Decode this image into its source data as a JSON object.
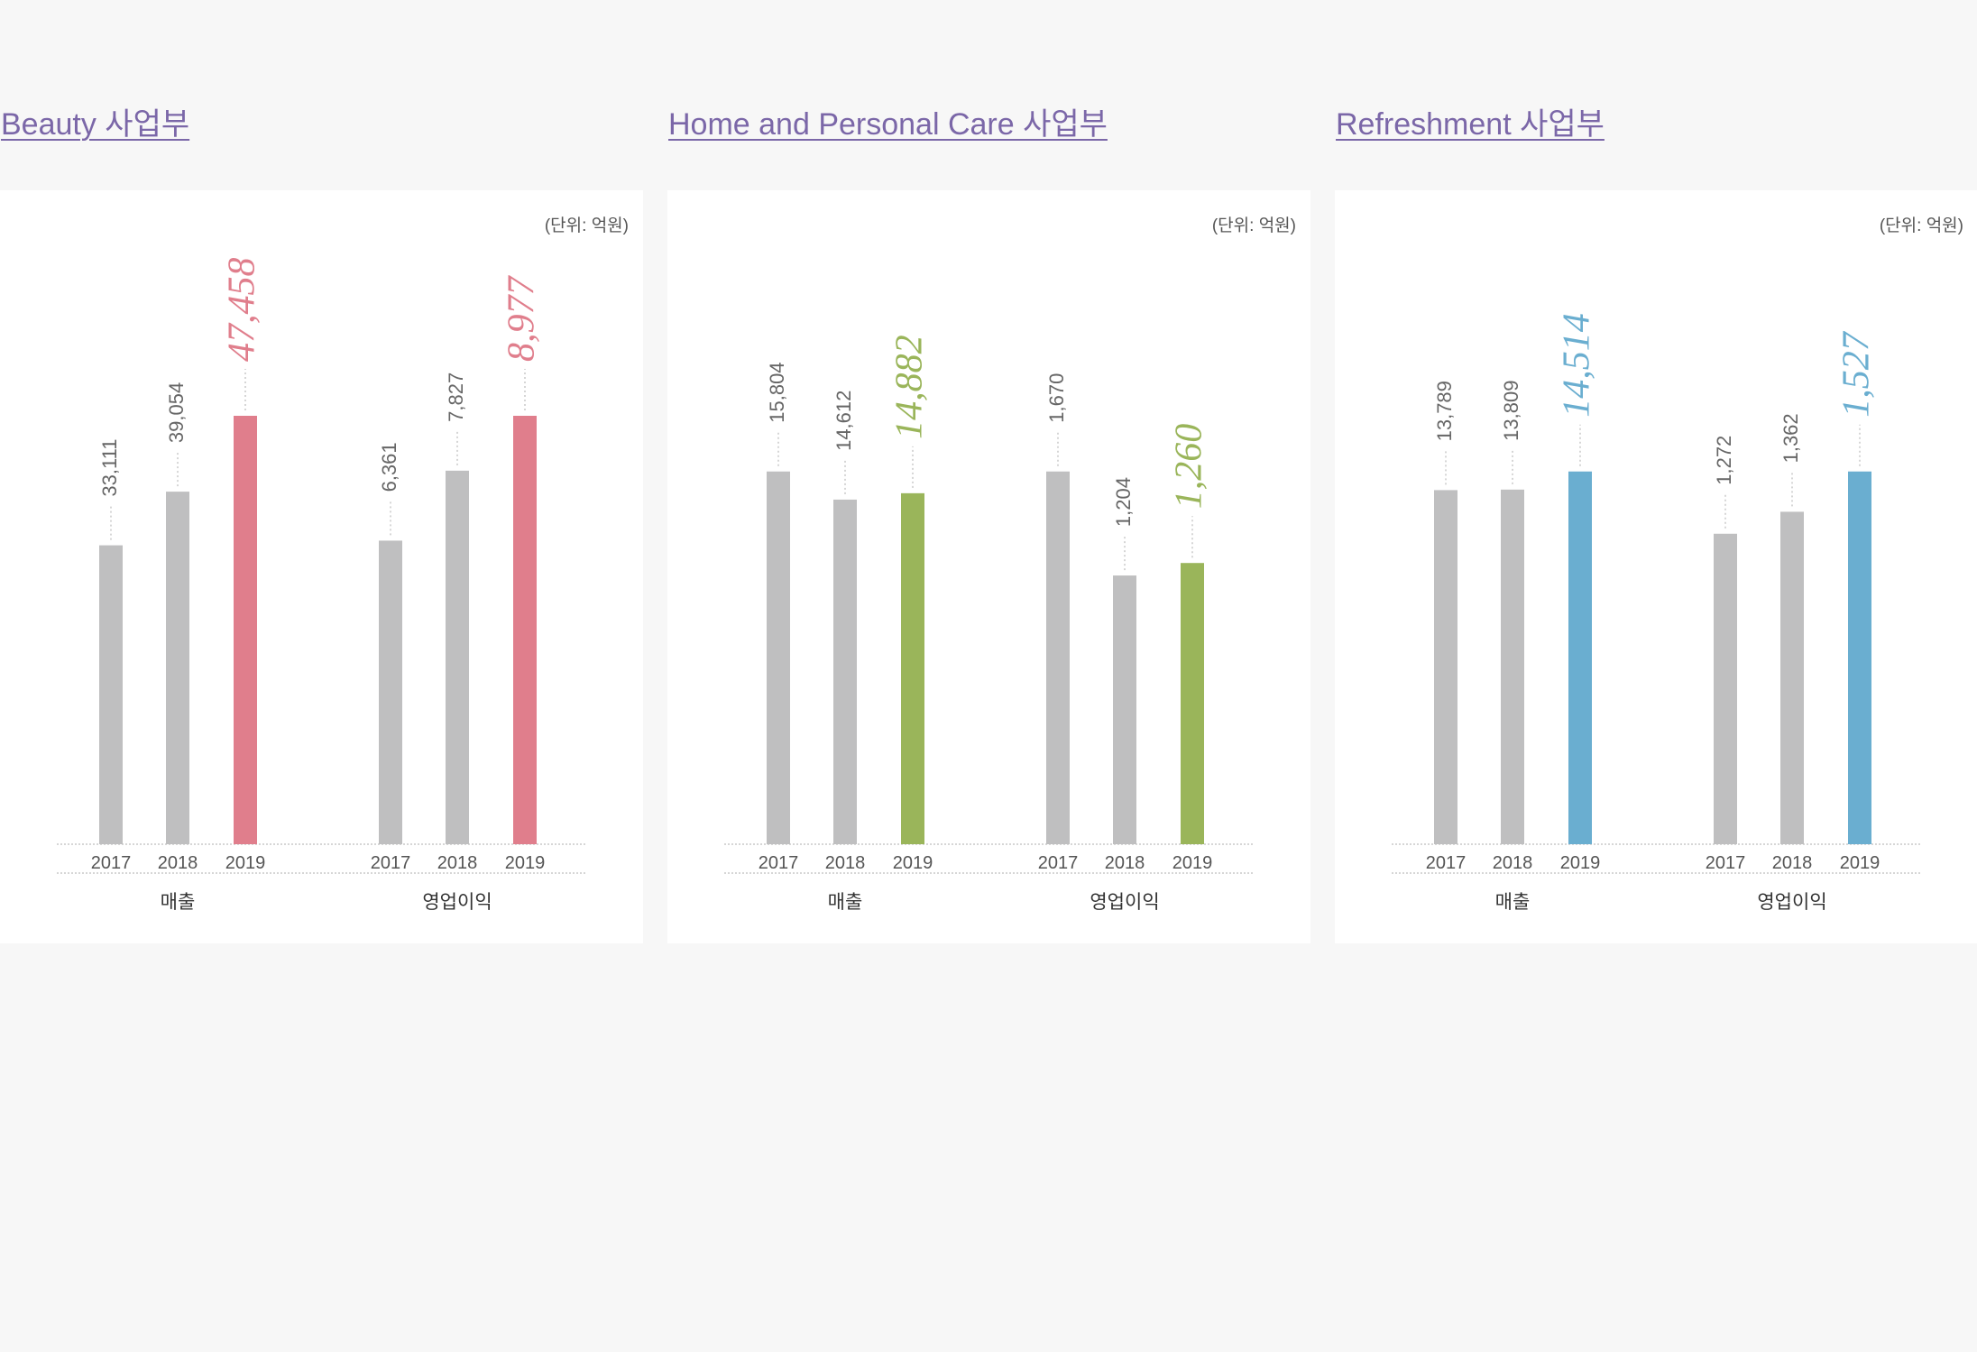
{
  "chart_data": [
    {
      "type": "bar",
      "title": "Beauty 사업부",
      "unit_label": "(단위: 억원)",
      "highlight_color": "#e07e8c",
      "base_color": "#bfbfc0",
      "groups": [
        {
          "label": "매출",
          "years": [
            "2017",
            "2018",
            "2019"
          ],
          "values": [
            33111,
            39054,
            47458
          ],
          "value_labels": [
            "33,111",
            "39,054",
            "47,458"
          ],
          "max": 47458
        },
        {
          "label": "영업이익",
          "years": [
            "2017",
            "2018",
            "2019"
          ],
          "values": [
            6361,
            7827,
            8977
          ],
          "value_labels": [
            "6,361",
            "7,827",
            "8,977"
          ],
          "max": 8977
        }
      ]
    },
    {
      "type": "bar",
      "title": "Home and Personal Care 사업부",
      "unit_label": "(단위: 억원)",
      "highlight_color": "#9ab55a",
      "base_color": "#bfbfc0",
      "groups": [
        {
          "label": "매출",
          "years": [
            "2017",
            "2018",
            "2019"
          ],
          "values": [
            15804,
            14612,
            14882
          ],
          "value_labels": [
            "15,804",
            "14,612",
            "14,882"
          ],
          "max": 15804
        },
        {
          "label": "영업이익",
          "years": [
            "2017",
            "2018",
            "2019"
          ],
          "values": [
            1670,
            1204,
            1260
          ],
          "value_labels": [
            "1,670",
            "1,204",
            "1,260"
          ],
          "max": 1670
        }
      ]
    },
    {
      "type": "bar",
      "title": "Refreshment 사업부",
      "unit_label": "(단위: 억원)",
      "highlight_color": "#6aaed0",
      "base_color": "#bfbfc0",
      "groups": [
        {
          "label": "매출",
          "years": [
            "2017",
            "2018",
            "2019"
          ],
          "values": [
            13789,
            13809,
            14514
          ],
          "value_labels": [
            "13,789",
            "13,809",
            "14,514"
          ],
          "max": 14514
        },
        {
          "label": "영업이익",
          "years": [
            "2017",
            "2018",
            "2019"
          ],
          "values": [
            1272,
            1362,
            1527
          ],
          "value_labels": [
            "1,272",
            "1,362",
            "1,527"
          ],
          "max": 1527
        }
      ]
    }
  ]
}
